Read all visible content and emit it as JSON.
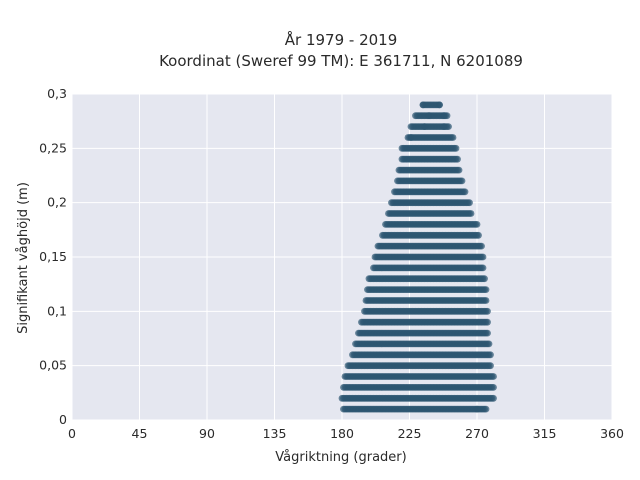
{
  "chart_data": {
    "type": "scatter",
    "title": "År 1979 - 2019",
    "subtitle": "Koordinat (Sweref 99 TM): E 361711, N 6201089",
    "xlabel": "Vågriktning (grader)",
    "ylabel": "Signifikant våghöjd (m)",
    "xlim": [
      0,
      360
    ],
    "ylim": [
      0,
      0.3
    ],
    "xticks": [
      0,
      45,
      90,
      135,
      180,
      225,
      270,
      315,
      360
    ],
    "xtick_labels": [
      "0",
      "45",
      "90",
      "135",
      "180",
      "225",
      "270",
      "315",
      "360"
    ],
    "yticks": [
      0,
      0.05,
      0.1,
      0.15,
      0.2,
      0.25,
      0.3
    ],
    "ytick_labels": [
      "0",
      "0,05",
      "0,1",
      "0,15",
      "0,2",
      "0,25",
      "0,3"
    ],
    "grid": true,
    "background": "#e5e7f0",
    "marker_color": "#2c5570",
    "bands": [
      {
        "y": 0.01,
        "x_min": 181,
        "x_max": 275
      },
      {
        "y": 0.02,
        "x_min": 180,
        "x_max": 281
      },
      {
        "y": 0.03,
        "x_min": 181,
        "x_max": 281
      },
      {
        "y": 0.04,
        "x_min": 182,
        "x_max": 281
      },
      {
        "y": 0.05,
        "x_min": 184,
        "x_max": 279
      },
      {
        "y": 0.06,
        "x_min": 187,
        "x_max": 279
      },
      {
        "y": 0.07,
        "x_min": 189,
        "x_max": 278
      },
      {
        "y": 0.08,
        "x_min": 191,
        "x_max": 277
      },
      {
        "y": 0.09,
        "x_min": 193,
        "x_max": 277
      },
      {
        "y": 0.1,
        "x_min": 195,
        "x_max": 277
      },
      {
        "y": 0.11,
        "x_min": 196,
        "x_max": 276
      },
      {
        "y": 0.12,
        "x_min": 197,
        "x_max": 276
      },
      {
        "y": 0.13,
        "x_min": 198,
        "x_max": 275
      },
      {
        "y": 0.14,
        "x_min": 201,
        "x_max": 274
      },
      {
        "y": 0.15,
        "x_min": 202,
        "x_max": 274
      },
      {
        "y": 0.16,
        "x_min": 204,
        "x_max": 273
      },
      {
        "y": 0.17,
        "x_min": 207,
        "x_max": 271
      },
      {
        "y": 0.18,
        "x_min": 209,
        "x_max": 270
      },
      {
        "y": 0.19,
        "x_min": 211,
        "x_max": 266
      },
      {
        "y": 0.2,
        "x_min": 213,
        "x_max": 265
      },
      {
        "y": 0.21,
        "x_min": 215,
        "x_max": 262
      },
      {
        "y": 0.22,
        "x_min": 217,
        "x_max": 260
      },
      {
        "y": 0.23,
        "x_min": 218,
        "x_max": 258
      },
      {
        "y": 0.24,
        "x_min": 220,
        "x_max": 257
      },
      {
        "y": 0.25,
        "x_min": 220,
        "x_max": 256
      },
      {
        "y": 0.26,
        "x_min": 224,
        "x_max": 254
      },
      {
        "y": 0.27,
        "x_min": 226,
        "x_max": 251
      },
      {
        "y": 0.28,
        "x_min": 229,
        "x_max": 250
      },
      {
        "y": 0.29,
        "x_min": 234,
        "x_max": 245
      }
    ],
    "sparse_points": [
      {
        "x": 226,
        "y": 0.26
      },
      {
        "x": 235,
        "y": 0.27
      },
      {
        "x": 248,
        "y": 0.27
      },
      {
        "x": 238,
        "y": 0.28
      },
      {
        "x": 248,
        "y": 0.28
      },
      {
        "x": 234,
        "y": 0.29
      },
      {
        "x": 245,
        "y": 0.29
      },
      {
        "x": 270,
        "y": 0.01
      },
      {
        "x": 276,
        "y": 0.01
      }
    ]
  }
}
